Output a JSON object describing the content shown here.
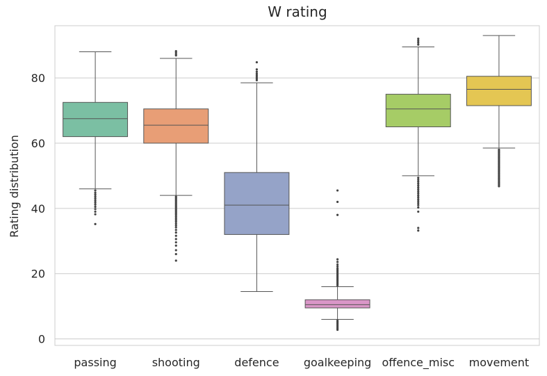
{
  "chart_data": {
    "type": "box",
    "title": "W rating",
    "xlabel": "",
    "ylabel": "Rating distribution",
    "ylim": [
      -2,
      96
    ],
    "yticks": [
      0,
      20,
      40,
      60,
      80
    ],
    "grid": "horizontal",
    "categories": [
      "passing",
      "shooting",
      "defence",
      "goalkeeping",
      "offence_misc",
      "movement"
    ],
    "boxes": [
      {
        "color": "#7bbfa3",
        "whislo": 46,
        "q1": 62,
        "median": 67.5,
        "q3": 72.5,
        "whishi": 88,
        "fliers": [
          45.5,
          44.8,
          44.2,
          43.6,
          43,
          42.4,
          41.8,
          41.2,
          40.5,
          39.8,
          39,
          38.2,
          35.2
        ]
      },
      {
        "color": "#e89e76",
        "whislo": 44,
        "q1": 60,
        "median": 65.5,
        "q3": 70.5,
        "whishi": 86,
        "fliers": [
          88.2,
          87.8,
          87.3,
          86.9,
          43.6,
          43.2,
          42.8,
          42.4,
          42,
          41.6,
          41.2,
          40.8,
          40.4,
          40,
          39.6,
          39.2,
          38.8,
          38.4,
          38,
          37.5,
          37,
          36.5,
          36,
          35.4,
          34.8,
          34.2,
          33.4,
          32.6,
          31.6,
          30.6,
          29.6,
          28.6,
          27.2,
          26,
          24
        ]
      },
      {
        "color": "#95a3c8",
        "whislo": 14.5,
        "q1": 32,
        "median": 41,
        "q3": 51,
        "whishi": 78.5,
        "fliers": [
          79.3,
          79.8,
          80.3,
          80.8,
          81.3,
          81.9,
          82.6,
          84.8
        ]
      },
      {
        "color": "#d996c7",
        "whislo": 6,
        "q1": 9.5,
        "median": 10.5,
        "q3": 12,
        "whishi": 16,
        "fliers": [
          16.4,
          16.8,
          17.2,
          17.6,
          18,
          18.4,
          18.8,
          19.2,
          19.6,
          20,
          20.4,
          20.8,
          21.2,
          21.6,
          22.2,
          22.8,
          23.6,
          24.4,
          38,
          42,
          45.5,
          5.6,
          5.2,
          4.8,
          4.4,
          4.0,
          3.6,
          3.2,
          2.8
        ]
      },
      {
        "color": "#a6cc66",
        "whislo": 50,
        "q1": 65,
        "median": 70.5,
        "q3": 75,
        "whishi": 89.5,
        "fliers": [
          90.2,
          90.8,
          91.4,
          92,
          49.4,
          48.8,
          48.2,
          47.6,
          47,
          46.4,
          45.8,
          45.2,
          44.6,
          44,
          43.4,
          42.8,
          42.2,
          41.6,
          41,
          40.3,
          39,
          34,
          33.2
        ]
      },
      {
        "color": "#e4c653",
        "whislo": 58.5,
        "q1": 71.5,
        "median": 76.5,
        "q3": 80.5,
        "whishi": 93,
        "fliers": [
          58,
          57.6,
          57.2,
          56.8,
          56.4,
          56,
          55.6,
          55.2,
          54.8,
          54.4,
          54,
          53.6,
          53.2,
          52.8,
          52.4,
          52,
          51.6,
          51.2,
          50.8,
          50.4,
          50,
          49.6,
          49.2,
          48.8,
          48.4,
          48,
          47.6,
          47.2,
          46.8
        ]
      }
    ]
  }
}
